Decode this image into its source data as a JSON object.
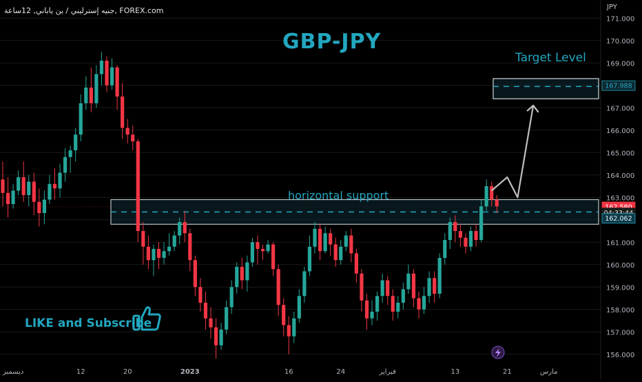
{
  "header": {
    "symbol_line": "جنيه إسترليني / ين ياباني, 12ساعة, FOREX.com"
  },
  "chart_data": {
    "type": "candlestick",
    "title": "GBP-JPY",
    "ylabel": "JPY",
    "ylim": [
      155.5,
      171.5
    ],
    "y_ticks": [
      "156.000",
      "157.000",
      "158.000",
      "159.000",
      "160.000",
      "161.000",
      "162.000",
      "163.000",
      "164.000",
      "165.000",
      "166.000",
      "167.000",
      "168.000",
      "169.000",
      "170.000",
      "171.000"
    ],
    "y_tick_values": [
      156,
      157,
      158,
      159,
      160,
      161,
      162,
      163,
      164,
      165,
      166,
      167,
      168,
      169,
      170,
      171
    ],
    "x_ticks": [
      {
        "label": "ديسمبر",
        "index": 2
      },
      {
        "label": "12",
        "index": 15
      },
      {
        "label": "20",
        "index": 24
      },
      {
        "label": "2023",
        "index": 36,
        "bold": true
      },
      {
        "label": "16",
        "index": 55
      },
      {
        "label": "24",
        "index": 65
      },
      {
        "label": "فبراير",
        "index": 74
      },
      {
        "label": "13",
        "index": 87
      },
      {
        "label": "21",
        "index": 97
      },
      {
        "label": "مارس",
        "index": 105
      }
    ],
    "candles": [
      [
        163.8,
        163.2,
        164.6,
        162.6
      ],
      [
        163.2,
        162.7,
        163.9,
        162.1
      ],
      [
        162.7,
        163.3,
        163.6,
        162.5
      ],
      [
        163.3,
        163.9,
        164.2,
        163.1
      ],
      [
        163.9,
        163.1,
        164.6,
        162.8
      ],
      [
        163.1,
        163.7,
        164.0,
        162.6
      ],
      [
        163.7,
        162.8,
        164.1,
        162.2
      ],
      [
        162.8,
        162.3,
        163.4,
        161.7
      ],
      [
        162.3,
        162.9,
        163.3,
        161.8
      ],
      [
        162.9,
        163.6,
        164.0,
        162.7
      ],
      [
        163.6,
        163.4,
        164.3,
        162.9
      ],
      [
        163.4,
        164.1,
        164.5,
        163.0
      ],
      [
        164.1,
        164.8,
        165.2,
        163.7
      ],
      [
        164.8,
        165.1,
        165.3,
        164.1
      ],
      [
        165.1,
        165.8,
        166.1,
        164.6
      ],
      [
        165.8,
        167.2,
        167.6,
        165.5
      ],
      [
        167.2,
        167.9,
        168.4,
        166.9
      ],
      [
        167.9,
        167.2,
        168.8,
        166.8
      ],
      [
        167.2,
        168.5,
        168.9,
        167.0
      ],
      [
        168.5,
        169.1,
        169.5,
        168.0
      ],
      [
        169.1,
        168.0,
        169.3,
        167.7
      ],
      [
        168.0,
        168.8,
        169.2,
        167.8
      ],
      [
        168.8,
        167.5,
        168.9,
        166.9
      ],
      [
        167.5,
        166.1,
        168.1,
        165.6
      ],
      [
        166.1,
        165.8,
        166.5,
        165.4
      ],
      [
        165.8,
        165.5,
        166.2,
        165.1
      ],
      [
        165.5,
        161.5,
        165.6,
        161.0
      ],
      [
        161.5,
        160.8,
        161.9,
        160.0
      ],
      [
        160.8,
        160.2,
        161.3,
        159.8
      ],
      [
        160.2,
        160.7,
        160.9,
        159.5
      ],
      [
        160.7,
        160.3,
        161.0,
        159.8
      ],
      [
        160.3,
        160.6,
        161.0,
        160.0
      ],
      [
        160.6,
        160.8,
        161.4,
        160.4
      ],
      [
        160.8,
        161.3,
        161.5,
        160.6
      ],
      [
        161.3,
        161.9,
        162.1,
        160.9
      ],
      [
        161.9,
        161.4,
        162.4,
        161.0
      ],
      [
        161.4,
        160.2,
        161.6,
        159.7
      ],
      [
        160.2,
        159.0,
        160.4,
        158.6
      ],
      [
        159.0,
        158.3,
        159.4,
        157.9
      ],
      [
        158.3,
        157.6,
        158.8,
        157.1
      ],
      [
        157.6,
        157.2,
        158.1,
        156.7
      ],
      [
        157.2,
        156.4,
        157.6,
        155.8
      ],
      [
        156.4,
        157.1,
        157.4,
        156.2
      ],
      [
        157.1,
        158.1,
        158.4,
        156.9
      ],
      [
        158.1,
        159.0,
        159.3,
        157.8
      ],
      [
        159.0,
        159.9,
        160.1,
        158.7
      ],
      [
        159.9,
        159.3,
        160.3,
        158.9
      ],
      [
        159.3,
        160.1,
        160.4,
        158.8
      ],
      [
        160.1,
        161.0,
        161.2,
        159.9
      ],
      [
        161.0,
        160.7,
        161.3,
        160.0
      ],
      [
        160.7,
        160.6,
        160.9,
        160.2
      ],
      [
        160.6,
        160.9,
        161.1,
        160.5
      ],
      [
        160.9,
        159.8,
        161.0,
        159.5
      ],
      [
        159.8,
        158.2,
        160.0,
        157.7
      ],
      [
        158.2,
        157.3,
        158.5,
        156.8
      ],
      [
        157.3,
        156.8,
        157.7,
        156.0
      ],
      [
        156.8,
        157.6,
        157.9,
        156.5
      ],
      [
        157.6,
        158.6,
        158.9,
        157.4
      ],
      [
        158.6,
        159.7,
        159.9,
        158.3
      ],
      [
        159.7,
        160.8,
        161.3,
        159.5
      ],
      [
        160.8,
        161.6,
        161.9,
        160.5
      ],
      [
        161.6,
        160.6,
        161.8,
        160.2
      ],
      [
        160.6,
        161.4,
        161.7,
        160.5
      ],
      [
        161.4,
        160.9,
        161.6,
        160.4
      ],
      [
        160.9,
        160.2,
        161.2,
        159.9
      ],
      [
        160.2,
        160.8,
        161.1,
        160.0
      ],
      [
        160.8,
        161.3,
        161.5,
        160.6
      ],
      [
        161.3,
        160.5,
        161.6,
        160.1
      ],
      [
        160.5,
        159.6,
        160.7,
        159.2
      ],
      [
        159.6,
        158.4,
        159.8,
        157.9
      ],
      [
        158.4,
        157.6,
        158.7,
        157.1
      ],
      [
        157.6,
        157.9,
        158.4,
        157.3
      ],
      [
        157.9,
        158.6,
        158.8,
        157.5
      ],
      [
        158.6,
        159.3,
        159.6,
        158.3
      ],
      [
        159.3,
        158.6,
        159.5,
        158.2
      ],
      [
        158.6,
        157.9,
        158.9,
        157.5
      ],
      [
        157.9,
        158.3,
        158.6,
        157.6
      ],
      [
        158.3,
        158.9,
        159.2,
        158.0
      ],
      [
        158.9,
        159.6,
        160.0,
        158.7
      ],
      [
        159.6,
        158.5,
        159.8,
        158.1
      ],
      [
        158.5,
        158.0,
        158.8,
        157.6
      ],
      [
        158.0,
        158.6,
        159.0,
        157.8
      ],
      [
        158.6,
        159.4,
        159.7,
        158.3
      ],
      [
        159.4,
        158.7,
        159.7,
        158.3
      ],
      [
        158.7,
        160.3,
        160.5,
        158.5
      ],
      [
        160.3,
        161.1,
        161.4,
        160.0
      ],
      [
        161.1,
        161.9,
        162.1,
        160.7
      ],
      [
        161.9,
        161.5,
        162.2,
        161.0
      ],
      [
        161.5,
        161.2,
        161.8,
        160.8
      ],
      [
        161.2,
        160.8,
        161.4,
        160.5
      ],
      [
        160.8,
        161.5,
        161.7,
        160.6
      ],
      [
        161.5,
        161.1,
        161.8,
        160.8
      ],
      [
        161.1,
        162.6,
        162.9,
        161.0
      ],
      [
        162.6,
        163.5,
        163.8,
        162.4
      ],
      [
        163.5,
        162.9,
        163.7,
        162.6
      ],
      [
        162.9,
        162.6,
        163.1,
        162.3
      ]
    ],
    "support_zone": {
      "label": "horizontal support",
      "top": 162.9,
      "bottom": 161.8,
      "level": 162.35
    },
    "target": {
      "label": "Target Level",
      "top": 168.3,
      "bottom": 167.4,
      "level": 167.95
    },
    "projection": [
      [
        94,
        163.3
      ],
      [
        97,
        163.9
      ],
      [
        99,
        163.0
      ],
      [
        102,
        167.1
      ],
      [
        103,
        166.8
      ]
    ],
    "price_badges": [
      {
        "text": "167.988",
        "value": 167.988,
        "style": "target"
      },
      {
        "text": "162.580",
        "value": 162.58,
        "style": "red"
      },
      {
        "text": "04:33:44",
        "value": 162.31,
        "style": "dark"
      },
      {
        "text": "162.062",
        "value": 162.062,
        "style": "support"
      }
    ],
    "colors": {
      "up": "#26a69a",
      "down": "#f23645",
      "accent": "#22a7c0",
      "grid": "#1a1a1a"
    }
  },
  "overlay": {
    "like_text": "LIKE and Subscribe"
  }
}
